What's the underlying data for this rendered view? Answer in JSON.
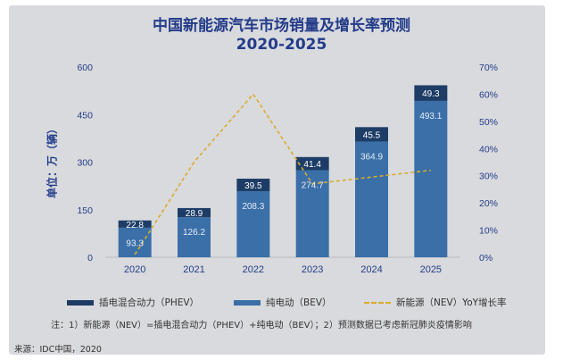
{
  "chart_data": {
    "type": "bar",
    "title": "中国新能源汽车市场销量及增长率预测",
    "subtitle": "2020-2025",
    "ylabel": "单位：万（辆）",
    "categories": [
      "2020",
      "2021",
      "2022",
      "2023",
      "2024",
      "2025"
    ],
    "ylim": [
      0,
      600
    ],
    "y_ticks": [
      "0",
      "150",
      "300",
      "450",
      "600"
    ],
    "y2lim": [
      0,
      70
    ],
    "y2_ticks": [
      "0%",
      "10%",
      "20%",
      "30%",
      "40%",
      "50%",
      "60%",
      "70%"
    ],
    "stacked": true,
    "series": [
      {
        "name": "纯电动（BEV）",
        "kind": "bar",
        "color": "#3a6fa8",
        "values": [
          93.3,
          126.2,
          208.3,
          274.7,
          364.9,
          493.1
        ],
        "labels": [
          "93.3",
          "126.2",
          "208.3",
          "274.7",
          "364.9",
          "493.1"
        ]
      },
      {
        "name": "插电混合动力（PHEV）",
        "kind": "bar",
        "color": "#1e3d66",
        "values": [
          22.8,
          28.9,
          39.5,
          41.4,
          45.5,
          49.3
        ],
        "labels": [
          "22.8",
          "28.9",
          "39.5",
          "41.4",
          "45.5",
          "49.3"
        ]
      },
      {
        "name": "新能源（NEV）YoY增长率",
        "kind": "line",
        "axis": "secondary",
        "color": "#d8ac2c",
        "values": [
          1,
          35,
          60,
          27,
          29.5,
          32
        ]
      }
    ],
    "legend_position": "bottom",
    "grid": false
  },
  "note": "注：1）新能源（NEV）=插电混合动力（PHEV）+纯电动（BEV）；2）预测数据已考虑新冠肺炎疫情影响",
  "source": "来源：IDC中国，2020"
}
